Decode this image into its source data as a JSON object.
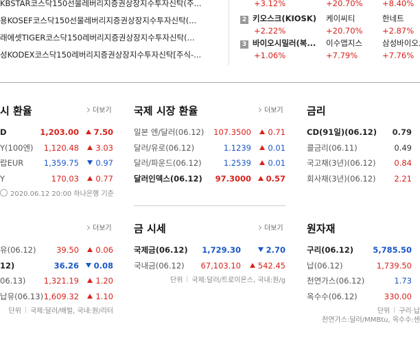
{
  "etf_list": {
    "items": [
      "KBSTAR코스닥150선물레버리지증권상장지수투자신탁(주...",
      "용KOSEF코스닥150선물레버리지증권상장지수투자신탁(...",
      "래에셋TIGER코스닥150레버리지증권상장지수투자신탁(...",
      "성KODEX코스닥150레버리지증권상장지수투자신탁[주식-..."
    ]
  },
  "themes": {
    "rows": [
      {
        "cells": [
          {
            "change": "+3.12%"
          },
          {
            "change": "+20.70%"
          },
          {
            "change": "+8.40%"
          }
        ]
      },
      {
        "rank": "2",
        "cells": [
          {
            "name": "키오스크(KIOSK)",
            "change": "+2.22%"
          },
          {
            "name": "케이씨티",
            "change": "+20.70%"
          },
          {
            "name": "한네트",
            "change": "+2.87%"
          }
        ]
      },
      {
        "rank": "3",
        "cells": [
          {
            "name": "바이오시밀러(복...",
            "change": "+1.06%"
          },
          {
            "name": "이수앱지스",
            "change": "+7.79%"
          },
          {
            "name": "삼성바이오...",
            "change": "+7.76%"
          }
        ]
      }
    ]
  },
  "panels": [
    {
      "title": "시 환율",
      "more": "더보기",
      "rows": [
        {
          "label": "D",
          "value": "1,203.00",
          "change": "7.50",
          "dir": "up",
          "color": "red",
          "bold": true
        },
        {
          "label": "Y(100엔)",
          "value": "1,120.48",
          "change": "3.03",
          "dir": "up",
          "color": "red"
        },
        {
          "label": "랍EUR",
          "value": "1,359.75",
          "change": "0.97",
          "dir": "down",
          "color": "blue"
        },
        {
          "label": "Y",
          "value": "170.03",
          "change": "0.77",
          "dir": "up",
          "color": "red"
        }
      ],
      "footer": {
        "text": "2020.06.12 20:00 하나은행 기준"
      }
    },
    {
      "title": "국제 시장 환율",
      "more": "더보기",
      "rows": [
        {
          "label": "일본 엔/달러(06.12)",
          "value": "107.3500",
          "change": "0.71",
          "dir": "up",
          "color": "red"
        },
        {
          "label": "달러/유로(06.12)",
          "value": "1.1239",
          "change": "0.01",
          "dir": "up",
          "color": "blue"
        },
        {
          "label": "달러/파운드(06.12)",
          "value": "1.2539",
          "change": "0.01",
          "dir": "up",
          "color": "blue"
        },
        {
          "label": "달러인덱스(06.12)",
          "value": "97.3000",
          "change": "0.57",
          "dir": "up",
          "color": "red",
          "bold": true
        }
      ]
    },
    {
      "title": "금리",
      "rows": [
        {
          "label": "CD(91일)(06.12)",
          "value": "0.79",
          "color": "black",
          "bold": true
        },
        {
          "label": "콜금리(06.11)",
          "value": "0.49",
          "color": "black"
        },
        {
          "label": "국고채(3년)(06.12)",
          "value": "0.84",
          "color": "red"
        },
        {
          "label": "회사채(3년)(06.12)",
          "value": "2.21",
          "color": "red"
        }
      ]
    },
    {
      "more": "더보기",
      "rows": [
        {
          "label": "유(06.12)",
          "value": "39.50",
          "change": "0.06",
          "dir": "up",
          "color": "red"
        },
        {
          "label": "12)",
          "value": "36.26",
          "change": "0.08",
          "dir": "down",
          "color": "blue",
          "bold": true
        },
        {
          "label": "06.13)",
          "value": "1,321.19",
          "change": "1.20",
          "dir": "up",
          "color": "red"
        },
        {
          "label": "납유(06.13)",
          "value": "1,609.32",
          "change": "1.10",
          "dir": "up",
          "color": "red"
        }
      ],
      "footer": {
        "unit": "단위",
        "text": "국제:달러/배럴, 국내:원/리터"
      }
    },
    {
      "title": "금 시세",
      "more": "더보기",
      "rows": [
        {
          "label": "국제금(06.12)",
          "value": "1,729.30",
          "change": "2.70",
          "dir": "down",
          "color": "blue",
          "bold": true
        },
        {
          "label": "국내금(06.12)",
          "value": "67,103.10",
          "change": "542.45",
          "dir": "up",
          "color": "red"
        }
      ],
      "footer": {
        "unit": "단위",
        "text": "국제:달러/트로이온스, 국내:원/g"
      }
    },
    {
      "title": "원자재",
      "rows": [
        {
          "label": "구리(06.12)",
          "value": "5,785.50",
          "color": "blue",
          "bold": true
        },
        {
          "label": "납(06.12)",
          "value": "1,739.50",
          "color": "red"
        },
        {
          "label": "천연가스(06.12)",
          "value": "1.73",
          "color": "blue"
        },
        {
          "label": "옥수수(06.12)",
          "value": "330.00",
          "color": "red"
        }
      ],
      "footer": {
        "unit": "단위",
        "text": "구리·납",
        "text2": "천연가스:달러/MMBtu, 옥수수:센"
      }
    }
  ]
}
